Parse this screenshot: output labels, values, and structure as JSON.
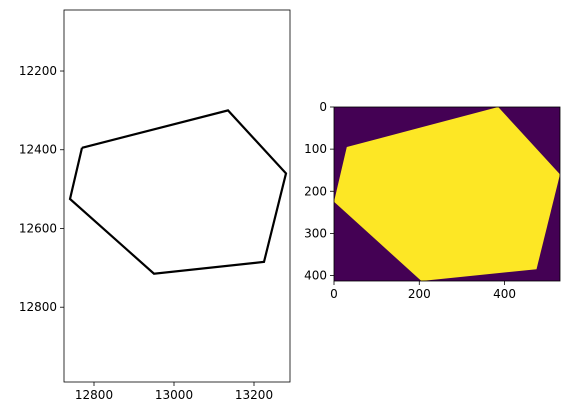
{
  "chart_data": [
    {
      "type": "line",
      "subtype": "polygon-outline",
      "title": "",
      "xlabel": "",
      "ylabel": "",
      "xlim": [
        12725,
        13290
      ],
      "ylim": [
        12990,
        12045
      ],
      "y_inverted": true,
      "grid": false,
      "line_color": "#000000",
      "xticks": [
        12800,
        13000,
        13200
      ],
      "xtick_labels": [
        "12800",
        "13000",
        "13200"
      ],
      "yticks": [
        12200,
        12400,
        12600,
        12800
      ],
      "ytick_labels": [
        "12200",
        "12400",
        "12600",
        "12800"
      ],
      "series": [
        {
          "x": [
            12770,
            13135,
            13280,
            13225,
            12950,
            12740,
            12770
          ],
          "y": [
            12395,
            12300,
            12460,
            12685,
            12715,
            12525,
            12395
          ]
        }
      ]
    },
    {
      "type": "heatmap",
      "subtype": "binary-mask-image",
      "title": "",
      "xlabel": "",
      "ylabel": "",
      "xlim": [
        0,
        530
      ],
      "ylim": [
        413,
        0
      ],
      "colormap": "viridis",
      "background_color": "#440154",
      "fill_color": "#fde725",
      "grid": false,
      "xticks": [
        0,
        200,
        400
      ],
      "xtick_labels": [
        "0",
        "200",
        "400"
      ],
      "yticks": [
        0,
        100,
        200,
        300,
        400
      ],
      "ytick_labels": [
        "0",
        "100",
        "200",
        "300",
        "400"
      ],
      "polygon": {
        "x": [
          30,
          385,
          530,
          475,
          205,
          0,
          30
        ],
        "y": [
          95,
          0,
          160,
          385,
          413,
          225,
          95
        ]
      }
    }
  ]
}
